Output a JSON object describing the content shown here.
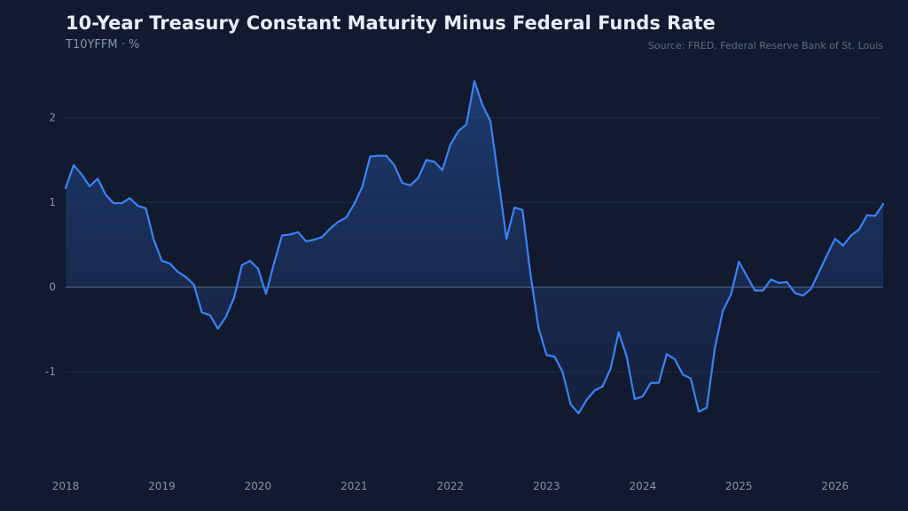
{
  "header": {
    "title": "10-Year Treasury Constant Maturity Minus Federal Funds Rate",
    "subtitle": "T10YFFM · %",
    "source": "Source: FRED, Federal Reserve Bank of St. Louis"
  },
  "colors": {
    "background": "#111a2e",
    "line": "#3b82f6",
    "area_fill": "#1f3f7a",
    "grid": "#1f2a40",
    "zero_line": "#4a5b7c",
    "tick_text": "#8793ab"
  },
  "chart_data": {
    "type": "area",
    "title": "10-Year Treasury Constant Maturity Minus Federal Funds Rate",
    "subtitle": "T10YFFM · %",
    "xlabel": "",
    "ylabel": "",
    "xlim": [
      "2018-01",
      "2026-07"
    ],
    "ylim": [
      -1.95,
      2.55
    ],
    "y_ticks": [
      2,
      1,
      0,
      -1
    ],
    "x_ticks": [
      "2018",
      "2019",
      "2020",
      "2021",
      "2022",
      "2023",
      "2024",
      "2025",
      "2026"
    ],
    "grid": true,
    "legend": "none",
    "x": [
      "2018-01",
      "2018-02",
      "2018-03",
      "2018-04",
      "2018-05",
      "2018-06",
      "2018-07",
      "2018-08",
      "2018-09",
      "2018-10",
      "2018-11",
      "2018-12",
      "2019-01",
      "2019-02",
      "2019-03",
      "2019-04",
      "2019-05",
      "2019-06",
      "2019-07",
      "2019-08",
      "2019-09",
      "2019-10",
      "2019-11",
      "2019-12",
      "2020-01",
      "2020-02",
      "2020-03",
      "2020-04",
      "2020-05",
      "2020-06",
      "2020-07",
      "2020-08",
      "2020-09",
      "2020-10",
      "2020-11",
      "2020-12",
      "2021-01",
      "2021-02",
      "2021-03",
      "2021-04",
      "2021-05",
      "2021-06",
      "2021-07",
      "2021-08",
      "2021-09",
      "2021-10",
      "2021-11",
      "2021-12",
      "2022-01",
      "2022-02",
      "2022-03",
      "2022-04",
      "2022-05",
      "2022-06",
      "2022-07",
      "2022-08",
      "2022-09",
      "2022-10",
      "2022-11",
      "2022-12",
      "2023-01",
      "2023-02",
      "2023-03",
      "2023-04",
      "2023-05",
      "2023-06",
      "2023-07",
      "2023-08",
      "2023-09",
      "2023-10",
      "2023-11",
      "2023-12",
      "2024-01",
      "2024-02",
      "2024-03",
      "2024-04",
      "2024-05",
      "2024-06",
      "2024-07",
      "2024-08",
      "2024-09",
      "2024-10",
      "2024-11",
      "2024-12",
      "2025-01",
      "2025-02",
      "2025-03",
      "2025-04",
      "2025-05",
      "2025-06",
      "2025-07",
      "2025-08",
      "2025-09",
      "2025-10",
      "2025-11",
      "2025-12",
      "2026-01",
      "2026-02",
      "2026-03",
      "2026-04",
      "2026-05",
      "2026-06",
      "2026-07"
    ],
    "series": [
      {
        "values": [
          1.17,
          1.44,
          1.33,
          1.19,
          1.28,
          1.09,
          0.99,
          0.99,
          1.05,
          0.96,
          0.93,
          0.56,
          0.31,
          0.28,
          0.18,
          0.12,
          0.03,
          -0.3,
          -0.33,
          -0.49,
          -0.35,
          -0.13,
          0.26,
          0.31,
          0.22,
          -0.08,
          0.28,
          0.61,
          0.62,
          0.65,
          0.54,
          0.56,
          0.59,
          0.69,
          0.77,
          0.82,
          0.98,
          1.18,
          1.54,
          1.55,
          1.55,
          1.44,
          1.23,
          1.2,
          1.29,
          1.5,
          1.48,
          1.38,
          1.68,
          1.84,
          1.92,
          2.43,
          2.15,
          1.96,
          1.27,
          0.57,
          0.94,
          0.91,
          0.15,
          -0.48,
          -0.8,
          -0.82,
          -1.0,
          -1.38,
          -1.49,
          -1.33,
          -1.22,
          -1.17,
          -0.96,
          -0.53,
          -0.82,
          -1.32,
          -1.29,
          -1.13,
          -1.13,
          -0.79,
          -0.85,
          -1.03,
          -1.08,
          -1.47,
          -1.42,
          -0.72,
          -0.28,
          -0.09,
          0.3,
          0.13,
          -0.04,
          -0.04,
          0.09,
          0.05,
          0.06,
          -0.07,
          -0.1,
          -0.02,
          0.18,
          0.38,
          0.57,
          0.49,
          0.61,
          0.68,
          0.85,
          0.84,
          0.98
        ]
      }
    ]
  }
}
